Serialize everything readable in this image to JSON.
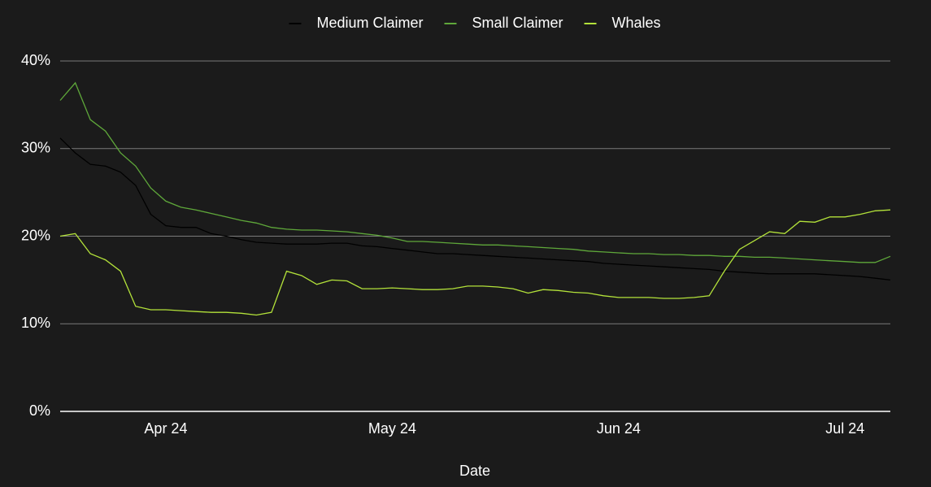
{
  "chart_data": {
    "type": "line",
    "x_label": "Date",
    "categories": [
      null,
      null,
      null,
      null,
      null,
      null,
      null,
      "Apr 24",
      null,
      null,
      null,
      null,
      null,
      null,
      null,
      null,
      null,
      null,
      null,
      null,
      null,
      null,
      "May 24",
      null,
      null,
      null,
      null,
      null,
      null,
      null,
      null,
      null,
      null,
      null,
      null,
      null,
      null,
      "Jun 24",
      null,
      null,
      null,
      null,
      null,
      null,
      null,
      null,
      null,
      null,
      null,
      null,
      null,
      null,
      "Jul 24",
      null,
      null,
      null
    ],
    "series": [
      {
        "name": "Medium Claimer",
        "color": "#000000",
        "values": [
          31.2,
          29.5,
          28.2,
          28.0,
          27.3,
          25.8,
          22.5,
          21.2,
          21.0,
          21.0,
          20.3,
          20.0,
          19.6,
          19.3,
          19.2,
          19.1,
          19.1,
          19.1,
          19.2,
          19.2,
          18.9,
          18.8,
          18.6,
          18.4,
          18.2,
          18.0,
          18.0,
          17.9,
          17.8,
          17.7,
          17.6,
          17.5,
          17.4,
          17.3,
          17.2,
          17.1,
          16.9,
          16.8,
          16.7,
          16.6,
          16.5,
          16.4,
          16.3,
          16.2,
          16.0,
          15.9,
          15.8,
          15.7,
          15.7,
          15.7,
          15.7,
          15.6,
          15.5,
          15.4,
          15.2,
          15.0
        ]
      },
      {
        "name": "Small Claimer",
        "color": "#5fa83a",
        "values": [
          35.5,
          37.5,
          33.3,
          32.0,
          29.5,
          28.0,
          25.5,
          24.0,
          23.3,
          23.0,
          22.6,
          22.2,
          21.8,
          21.5,
          21.0,
          20.8,
          20.7,
          20.7,
          20.6,
          20.5,
          20.3,
          20.1,
          19.8,
          19.4,
          19.4,
          19.3,
          19.2,
          19.1,
          19.0,
          19.0,
          18.9,
          18.8,
          18.7,
          18.6,
          18.5,
          18.3,
          18.2,
          18.1,
          18.0,
          18.0,
          17.9,
          17.9,
          17.8,
          17.8,
          17.7,
          17.7,
          17.6,
          17.6,
          17.5,
          17.4,
          17.3,
          17.2,
          17.1,
          17.0,
          17.0,
          17.7
        ]
      },
      {
        "name": "Whales",
        "color": "#b3e23a",
        "values": [
          20.0,
          20.3,
          18.0,
          17.3,
          16.0,
          12.0,
          11.6,
          11.6,
          11.5,
          11.4,
          11.3,
          11.3,
          11.2,
          11.0,
          11.3,
          16.0,
          15.5,
          14.5,
          15.0,
          14.9,
          14.0,
          14.0,
          14.1,
          14.0,
          13.9,
          13.9,
          14.0,
          14.3,
          14.3,
          14.2,
          14.0,
          13.5,
          13.9,
          13.8,
          13.6,
          13.5,
          13.2,
          13.0,
          13.0,
          13.0,
          12.9,
          12.9,
          13.0,
          13.2,
          16.0,
          18.5,
          19.5,
          20.5,
          20.3,
          21.7,
          21.6,
          22.2,
          22.2,
          22.5,
          22.9,
          23.0
        ]
      }
    ],
    "ylim": [
      0,
      40
    ],
    "yticks": [
      {
        "value": 0,
        "label": "0%"
      },
      {
        "value": 10,
        "label": "10%"
      },
      {
        "value": 20,
        "label": "20%"
      },
      {
        "value": 30,
        "label": "30%"
      },
      {
        "value": 40,
        "label": "40%"
      }
    ],
    "grid": true,
    "legend": "top"
  }
}
